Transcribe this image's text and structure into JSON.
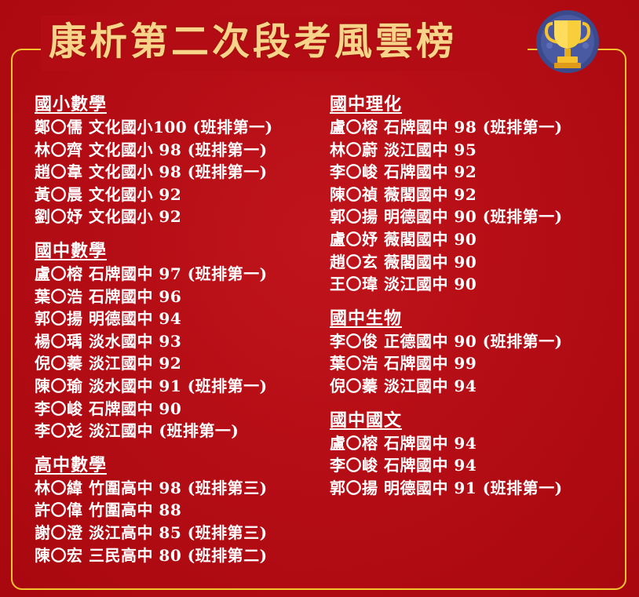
{
  "title": "康析第二次段考風雲榜",
  "colors": {
    "background": "#b30c14",
    "frame": "#f4c430",
    "title": "#f7d489",
    "text": "#ffffff"
  },
  "icons": {
    "trophy": "trophy-icon"
  },
  "left_sections": [
    {
      "heading": "國小數學",
      "rows": [
        "鄭〇儒 文化國小100 (班排第一)",
        "林〇齊 文化國小 98 (班排第一)",
        "趙〇韋 文化國小 98 (班排第一)",
        "黃〇晨 文化國小 92",
        "劉〇妤 文化國小 92"
      ]
    },
    {
      "heading": "國中數學",
      "rows": [
        "盧〇榕 石牌國中 97 (班排第一)",
        "葉〇浩 石牌國中 96",
        "郭〇揚 明德國中 94",
        "楊〇瑀 淡水國中 93",
        "倪〇蓁 淡江國中 92",
        "陳〇瑜 淡水國中 91 (班排第一)",
        "李〇峻 石牌國中 90",
        "李〇彣 淡江國中 (班排第一)"
      ]
    },
    {
      "heading": "高中數學",
      "rows": [
        "林〇緯 竹圍高中 98 (班排第三)",
        "許〇偉 竹圍高中 88",
        "謝〇澄 淡江高中 85 (班排第三)",
        "陳〇宏 三民高中 80 (班排第二)"
      ]
    }
  ],
  "right_sections": [
    {
      "heading": "國中理化",
      "rows": [
        "盧〇榕 石牌國中 98 (班排第一)",
        "林〇蔚 淡江國中 95",
        "李〇峻 石牌國中 92",
        "陳〇禎 薇閣國中 92",
        "郭〇揚 明德國中 90 (班排第一)",
        "盧〇妤 薇閣國中 90",
        "趙〇玄 薇閣國中 90",
        "王〇瑋 淡江國中 90"
      ]
    },
    {
      "heading": "國中生物",
      "rows": [
        "李〇俊 正德國中 90 (班排第一)",
        "葉〇浩 石牌國中 99",
        "倪〇蓁 淡江國中 94"
      ]
    },
    {
      "heading": "國中國文",
      "rows": [
        "盧〇榕 石牌國中 94",
        "李〇峻 石牌國中 94",
        "郭〇揚 明德國中 91 (班排第一)"
      ]
    }
  ]
}
